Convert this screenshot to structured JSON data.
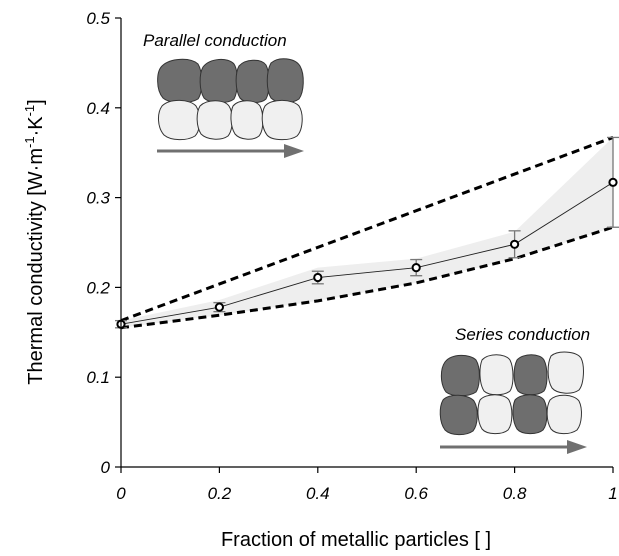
{
  "chart_data": {
    "type": "line",
    "xlabel": "Fraction of metallic particles [ ]",
    "ylabel_main": "Thermal conductivity [W·m",
    "ylabel_exp1": "-1",
    "ylabel_mid": "·K",
    "ylabel_exp2": "-1",
    "ylabel_end": "]",
    "xlim": [
      0,
      1
    ],
    "ylim": [
      0,
      0.5
    ],
    "x_ticks": [
      0,
      0.2,
      0.4,
      0.6,
      0.8,
      1
    ],
    "x_tick_labels": [
      "0",
      "0.2",
      "0.4",
      "0.6",
      "0.8",
      "1"
    ],
    "y_ticks": [
      0,
      0.1,
      0.2,
      0.3,
      0.4,
      0.5
    ],
    "y_tick_labels": [
      "0",
      "0.1",
      "0.2",
      "0.3",
      "0.4",
      "0.5"
    ],
    "grid": false,
    "series": [
      {
        "style": "markers-line",
        "x": [
          0,
          0.2,
          0.4,
          0.6,
          0.8,
          1
        ],
        "y": [
          0.159,
          0.178,
          0.211,
          0.222,
          0.248,
          0.317
        ],
        "err": [
          0.004,
          0.005,
          0.007,
          0.009,
          0.015,
          0.05
        ]
      },
      {
        "style": "dashed",
        "x": [
          0,
          1
        ],
        "y": [
          0.163,
          0.367
        ]
      },
      {
        "style": "dashed",
        "x": [
          0,
          0.2,
          0.4,
          0.6,
          0.8,
          1
        ],
        "y": [
          0.155,
          0.169,
          0.185,
          0.205,
          0.232,
          0.267
        ]
      }
    ],
    "band": {
      "x": [
        0,
        0.2,
        0.4,
        0.6,
        0.8,
        1
      ],
      "upper": [
        0.163,
        0.186,
        0.222,
        0.232,
        0.262,
        0.367
      ],
      "lower": [
        0.155,
        0.169,
        0.185,
        0.205,
        0.232,
        0.267
      ]
    },
    "annotations": {
      "parallel": "Parallel conduction",
      "series": "Series conduction"
    },
    "colors": {
      "axis": "#000000",
      "band": "#eeeeee",
      "dark_particle": "#6e6e6e",
      "light_particle": "#f0f0f0",
      "arrow": "#707070",
      "errorbar": "#777777"
    }
  }
}
